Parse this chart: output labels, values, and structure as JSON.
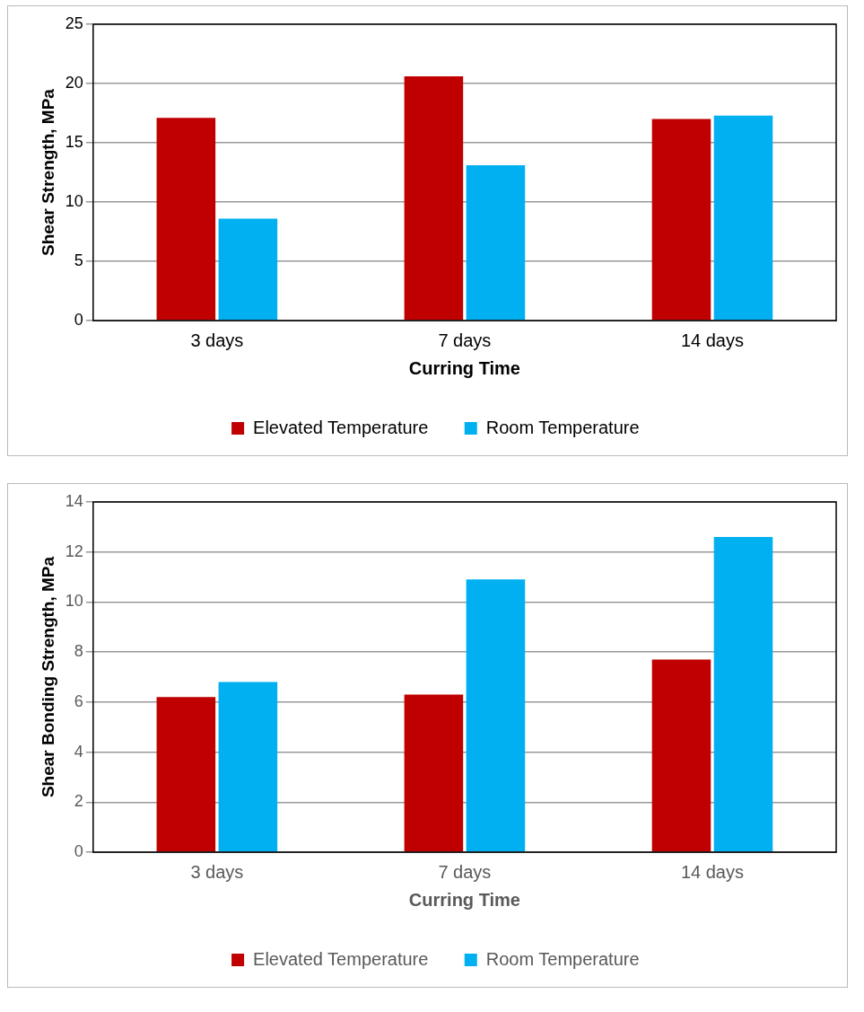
{
  "chart_data": [
    {
      "type": "bar",
      "xlabel": "Curring Time",
      "ylabel": "Shear Strength, MPa",
      "categories": [
        "3 days",
        "7 days",
        "14 days"
      ],
      "series": [
        {
          "name": "Elevated Temperature",
          "color": "#c00000",
          "values": [
            17.1,
            20.6,
            17.0
          ]
        },
        {
          "name": "Room Temperature",
          "color": "#00b0f0",
          "values": [
            8.6,
            13.1,
            17.3
          ]
        }
      ],
      "ylim": [
        0,
        25
      ],
      "yticks": [
        0,
        5,
        10,
        15,
        20,
        25
      ],
      "grid": "y",
      "legend": "bottom"
    },
    {
      "type": "bar",
      "xlabel": "Curring Time",
      "ylabel": "Shear Bonding Strength, MPa",
      "categories": [
        "3 days",
        "7 days",
        "14 days"
      ],
      "series": [
        {
          "name": "Elevated Temperature",
          "color": "#c00000",
          "values": [
            6.2,
            6.3,
            7.7
          ]
        },
        {
          "name": "Room Temperature",
          "color": "#00b0f0",
          "values": [
            6.8,
            10.9,
            12.6
          ]
        }
      ],
      "ylim": [
        0,
        14
      ],
      "yticks": [
        0,
        2,
        4,
        6,
        8,
        10,
        12,
        14
      ],
      "grid": "y",
      "legend": "bottom"
    }
  ]
}
